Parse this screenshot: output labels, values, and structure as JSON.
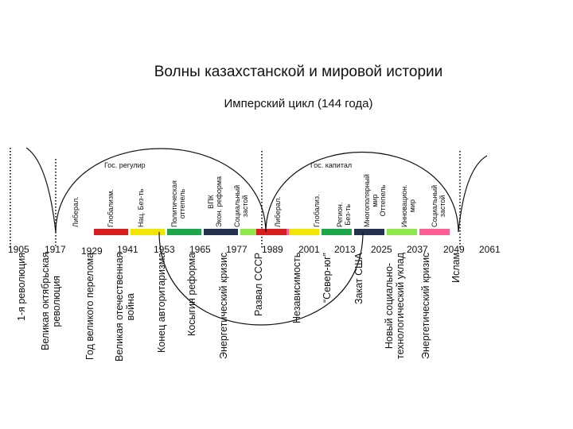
{
  "title": "Волны казахстанской и мировой истории",
  "subtitle": "Имперский цикл (144 года)",
  "years": [
    "1905",
    "1917",
    "1929",
    "1941",
    "1953",
    "1965",
    "1977",
    "1989",
    "2001",
    "2013",
    "2025",
    "2037",
    "2049",
    "2061"
  ],
  "segment_colors": [
    "#d81e1e",
    "#f2e600",
    "#1ea64b",
    "#22324f",
    "#8ee84b",
    "#ff5c93"
  ],
  "phase_labels_left": [
    {
      "text": "Либерал."
    },
    {
      "text": "Глобализм."
    },
    {
      "text": "Нац. Без-ть"
    },
    {
      "text": "Политическая\nоттепель"
    },
    {
      "text": "ВПК\nЭкон. реформа"
    },
    {
      "text": "Социальный\nзастой"
    }
  ],
  "phase_labels_right": [
    {
      "text": "Либерал."
    },
    {
      "text": "Глобализ."
    },
    {
      "text": "Регион.\nБез-ть"
    },
    {
      "text": "Многополярный\nмир\nОттепель"
    },
    {
      "text": "Инновацион.\nмир"
    },
    {
      "text": "Социальный\nзастой"
    }
  ],
  "arc_labels": {
    "left": "Гос. регулир",
    "right": "Гос. капитал"
  },
  "events": [
    "1-я революция",
    "Великая октябрьская\nреволюция",
    "Год великого перелома",
    "Великая отечественная\nвойна",
    "Конец авторитаризма",
    "Косыгин реформа",
    "Энергетический кризис",
    "Развал СССР",
    "Независимость",
    "“Север-юг”",
    "Закат США",
    "Новый социально-\nтехнологический уклад",
    "Энергетический кризис",
    "Ислам"
  ]
}
